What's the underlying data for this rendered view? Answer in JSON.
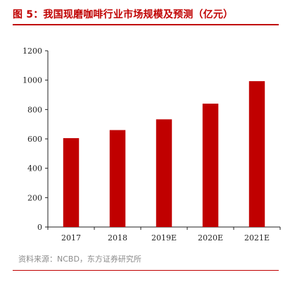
{
  "header": {
    "title": "图 5：我国现磨咖啡行业市场规模及预测（亿元）"
  },
  "footer": {
    "source": "资料来源：NCBD，东方证券研究所"
  },
  "colors": {
    "bar": "#c00000",
    "title": "#c00000",
    "axis": "#222222",
    "source": "#8c8c8c"
  },
  "chart_data": {
    "type": "bar",
    "title": "图 5：我国现磨咖啡行业市场规模及预测（亿元）",
    "xlabel": "",
    "ylabel": "",
    "categories": [
      "2017",
      "2018",
      "2019E",
      "2020E",
      "2021E"
    ],
    "values": [
      605,
      660,
      733,
      840,
      993
    ],
    "ylim": [
      0,
      1200
    ],
    "yticks": [
      "0",
      "200",
      "400",
      "600",
      "800",
      "1000",
      "1200"
    ],
    "ytick_values": [
      0,
      200,
      400,
      600,
      800,
      1000,
      1200
    ],
    "grid": false,
    "legend": "none"
  }
}
